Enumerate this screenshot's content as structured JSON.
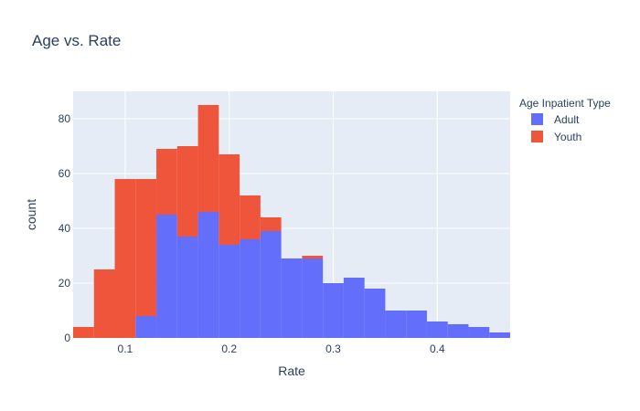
{
  "chart_data": {
    "type": "bar",
    "mode": "stacked-histogram",
    "title": "Age vs. Rate",
    "xlabel": "Rate",
    "ylabel": "count",
    "xlim": [
      0.05,
      0.47
    ],
    "ylim": [
      0,
      90
    ],
    "x_ticks": [
      0.1,
      0.2,
      0.3,
      0.4
    ],
    "x_tick_labels": [
      "0.1",
      "0.2",
      "0.3",
      "0.4"
    ],
    "y_ticks": [
      0,
      20,
      40,
      60,
      80
    ],
    "y_tick_labels": [
      "0",
      "20",
      "40",
      "60",
      "80"
    ],
    "grid": true,
    "legend": {
      "title": "Age Inpatient Type",
      "placement": "top-right"
    },
    "bin_width": 0.02,
    "bin_starts": [
      0.05,
      0.07,
      0.09,
      0.11,
      0.13,
      0.15,
      0.17,
      0.19,
      0.21,
      0.23,
      0.25,
      0.27,
      0.29,
      0.31,
      0.33,
      0.35,
      0.37,
      0.39,
      0.41,
      0.43,
      0.45
    ],
    "series": [
      {
        "name": "Adult",
        "color": "#636efa",
        "values": [
          0,
          0,
          0,
          8,
          45,
          37,
          46,
          34,
          36,
          39,
          29,
          29,
          20,
          22,
          18,
          10,
          10,
          6,
          5,
          4,
          2
        ]
      },
      {
        "name": "Youth",
        "color": "#ef553b",
        "values": [
          4,
          25,
          58,
          50,
          24,
          33,
          39,
          33,
          16,
          5,
          0,
          1,
          0,
          0,
          0,
          0,
          0,
          0,
          0,
          0,
          0
        ]
      }
    ]
  },
  "colors": {
    "plot_background": "#e5ecf6",
    "gridline": "#ffffff",
    "text": "#2a3f5f"
  }
}
